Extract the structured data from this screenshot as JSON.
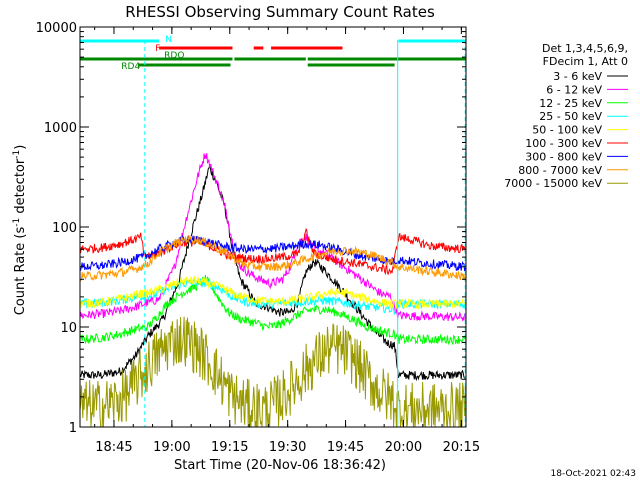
{
  "chart_data": {
    "type": "line",
    "title": "RHESSI Observing Summary Count Rates",
    "xlabel": "Start Time (20-Nov-06 18:36:42)",
    "ylabel": "Count Rate (s^-1 detector^-1)",
    "ylabel_parts": {
      "main": "Count Rate (s",
      "sup1": "-1",
      "mid": " detector",
      "sup2": "-1",
      "end": ")"
    },
    "y_scale": "log",
    "ylim": [
      1,
      10000
    ],
    "xlim_minutes": [
      -0.5,
      99.5
    ],
    "x_ticks": [
      {
        "label": "18:45",
        "minute": 8.3
      },
      {
        "label": "19:00",
        "minute": 23.3
      },
      {
        "label": "19:15",
        "minute": 38.3
      },
      {
        "label": "19:30",
        "minute": 53.3
      },
      {
        "label": "19:45",
        "minute": 68.3
      },
      {
        "label": "20:00",
        "minute": 83.3
      },
      {
        "label": "20:15",
        "minute": 98.3
      }
    ],
    "y_ticks": [
      {
        "label": "1",
        "value": 1
      },
      {
        "label": "10",
        "value": 10
      },
      {
        "label": "100",
        "value": 100
      },
      {
        "label": "1000",
        "value": 1000
      },
      {
        "label": "10000",
        "value": 10000
      }
    ],
    "legend_header": [
      "Det 1,3,4,5,6,9,",
      "FDecim 1, Att 0"
    ],
    "legend_position": "right",
    "series": [
      {
        "name": "3 - 6 keV",
        "color": "#000000",
        "points": [
          [
            -0.5,
            3.3
          ],
          [
            5,
            3.3
          ],
          [
            10,
            3.6
          ],
          [
            14,
            5.2
          ],
          [
            17,
            8
          ],
          [
            21,
            12
          ],
          [
            25,
            28
          ],
          [
            28,
            80
          ],
          [
            31,
            200
          ],
          [
            33,
            400
          ],
          [
            35,
            270
          ],
          [
            37,
            160
          ],
          [
            39,
            60
          ],
          [
            41,
            30
          ],
          [
            43,
            23
          ],
          [
            45,
            17
          ],
          [
            48,
            16
          ],
          [
            51,
            14
          ],
          [
            54,
            14
          ],
          [
            56,
            18
          ],
          [
            58,
            35
          ],
          [
            60,
            45
          ],
          [
            62,
            40
          ],
          [
            65,
            30
          ],
          [
            68,
            22
          ],
          [
            72,
            14
          ],
          [
            76,
            9
          ],
          [
            79,
            7
          ],
          [
            81,
            6.5
          ],
          [
            82,
            3.3
          ],
          [
            99.5,
            3.3
          ]
        ]
      },
      {
        "name": "6 - 12 keV",
        "color": "#ff00ff",
        "points": [
          [
            -0.5,
            13
          ],
          [
            5,
            13.5
          ],
          [
            10,
            14.5
          ],
          [
            14,
            16
          ],
          [
            17,
            17.5
          ],
          [
            20,
            19
          ],
          [
            24,
            40
          ],
          [
            27,
            120
          ],
          [
            30,
            320
          ],
          [
            32,
            550
          ],
          [
            34,
            350
          ],
          [
            36,
            220
          ],
          [
            38,
            110
          ],
          [
            40,
            45
          ],
          [
            43,
            35
          ],
          [
            46,
            30
          ],
          [
            49,
            27
          ],
          [
            52,
            30
          ],
          [
            54,
            40
          ],
          [
            56,
            70
          ],
          [
            58,
            80
          ],
          [
            60,
            60
          ],
          [
            63,
            55
          ],
          [
            66,
            45
          ],
          [
            70,
            35
          ],
          [
            74,
            27
          ],
          [
            77,
            22
          ],
          [
            80,
            20
          ],
          [
            82,
            13
          ],
          [
            99.5,
            12.5
          ]
        ]
      },
      {
        "name": "12 - 25 keV",
        "color": "#00ff00",
        "points": [
          [
            -0.5,
            7.5
          ],
          [
            5,
            7.8
          ],
          [
            10,
            8.5
          ],
          [
            14,
            9.5
          ],
          [
            17,
            10
          ],
          [
            19,
            12
          ],
          [
            22,
            17
          ],
          [
            26,
            22
          ],
          [
            30,
            26
          ],
          [
            32,
            30
          ],
          [
            34,
            24
          ],
          [
            36,
            18
          ],
          [
            38,
            14
          ],
          [
            41,
            12
          ],
          [
            45,
            11
          ],
          [
            48,
            10
          ],
          [
            51,
            10.5
          ],
          [
            54,
            12
          ],
          [
            57,
            14
          ],
          [
            60,
            15
          ],
          [
            63,
            15
          ],
          [
            66,
            14
          ],
          [
            70,
            12
          ],
          [
            74,
            10
          ],
          [
            78,
            9
          ],
          [
            81,
            8.5
          ],
          [
            82,
            7.5
          ],
          [
            99.5,
            7.5
          ]
        ]
      },
      {
        "name": "25 - 50 keV",
        "color": "#00ffff",
        "points": [
          [
            -0.5,
            17
          ],
          [
            5,
            17.5
          ],
          [
            10,
            18.5
          ],
          [
            14,
            20
          ],
          [
            17,
            20.5
          ],
          [
            19,
            21
          ],
          [
            22,
            24
          ],
          [
            26,
            27
          ],
          [
            30,
            28
          ],
          [
            33,
            27
          ],
          [
            36,
            24
          ],
          [
            39,
            20
          ],
          [
            42,
            18
          ],
          [
            46,
            17
          ],
          [
            50,
            17
          ],
          [
            54,
            17.5
          ],
          [
            58,
            18
          ],
          [
            62,
            18.5
          ],
          [
            66,
            18
          ],
          [
            70,
            17
          ],
          [
            74,
            16
          ],
          [
            78,
            15.5
          ],
          [
            81,
            15
          ],
          [
            82,
            17
          ],
          [
            99.5,
            17
          ]
        ]
      },
      {
        "name": "50 - 100 keV",
        "color": "#ffff00",
        "points": [
          [
            -0.5,
            17
          ],
          [
            5,
            17.5
          ],
          [
            10,
            19
          ],
          [
            14,
            21
          ],
          [
            17,
            22
          ],
          [
            19,
            23
          ],
          [
            22,
            25
          ],
          [
            26,
            29
          ],
          [
            30,
            29
          ],
          [
            33,
            27
          ],
          [
            36,
            25
          ],
          [
            40,
            21
          ],
          [
            44,
            19
          ],
          [
            48,
            18
          ],
          [
            52,
            18
          ],
          [
            56,
            19
          ],
          [
            60,
            20
          ],
          [
            64,
            22
          ],
          [
            68,
            22
          ],
          [
            72,
            20
          ],
          [
            76,
            18
          ],
          [
            80,
            17
          ],
          [
            82,
            17
          ],
          [
            99.5,
            17
          ]
        ]
      },
      {
        "name": "100 - 300 keV",
        "color": "#ff0000",
        "points": [
          [
            -0.5,
            60
          ],
          [
            5,
            62
          ],
          [
            10,
            68
          ],
          [
            14,
            76
          ],
          [
            15.5,
            80
          ],
          [
            16,
            50
          ],
          [
            20,
            55
          ],
          [
            24,
            66
          ],
          [
            27,
            71
          ],
          [
            30,
            70
          ],
          [
            33,
            65
          ],
          [
            36,
            57
          ],
          [
            38,
            52
          ],
          [
            40,
            50
          ],
          [
            44,
            48
          ],
          [
            48,
            48
          ],
          [
            52,
            50
          ],
          [
            56,
            54
          ],
          [
            58,
            90
          ],
          [
            60,
            55
          ],
          [
            63,
            50
          ],
          [
            66,
            47
          ],
          [
            70,
            44
          ],
          [
            74,
            41
          ],
          [
            78,
            38
          ],
          [
            80.5,
            36
          ],
          [
            82,
            80
          ],
          [
            85,
            75
          ],
          [
            90,
            65
          ],
          [
            95,
            62
          ],
          [
            99.5,
            60
          ]
        ]
      },
      {
        "name": "300 - 800 keV",
        "color": "#0000ff",
        "points": [
          [
            -0.5,
            40
          ],
          [
            5,
            41
          ],
          [
            10,
            44
          ],
          [
            14,
            48
          ],
          [
            17,
            52
          ],
          [
            20,
            60
          ],
          [
            24,
            70
          ],
          [
            27,
            75
          ],
          [
            30,
            74
          ],
          [
            33,
            70
          ],
          [
            36,
            65
          ],
          [
            39,
            62
          ],
          [
            42,
            60
          ],
          [
            46,
            60
          ],
          [
            50,
            61
          ],
          [
            54,
            64
          ],
          [
            58,
            68
          ],
          [
            62,
            66
          ],
          [
            66,
            60
          ],
          [
            70,
            54
          ],
          [
            74,
            50
          ],
          [
            78,
            47
          ],
          [
            80,
            45
          ],
          [
            82,
            47
          ],
          [
            90,
            43
          ],
          [
            99.5,
            40
          ]
        ]
      },
      {
        "name": "800 - 7000 keV",
        "color": "#ff9900",
        "points": [
          [
            -0.5,
            32
          ],
          [
            5,
            33
          ],
          [
            10,
            35
          ],
          [
            14,
            38
          ],
          [
            17,
            43
          ],
          [
            20,
            55
          ],
          [
            24,
            68
          ],
          [
            27,
            76
          ],
          [
            30,
            75
          ],
          [
            33,
            68
          ],
          [
            36,
            58
          ],
          [
            39,
            50
          ],
          [
            42,
            42
          ],
          [
            46,
            40
          ],
          [
            50,
            40
          ],
          [
            54,
            42
          ],
          [
            58,
            48
          ],
          [
            62,
            54
          ],
          [
            66,
            58
          ],
          [
            70,
            58
          ],
          [
            74,
            54
          ],
          [
            78,
            48
          ],
          [
            80,
            45
          ],
          [
            82,
            40
          ],
          [
            90,
            36
          ],
          [
            99.5,
            32
          ]
        ]
      },
      {
        "name": "7000 - 15000 keV",
        "color": "#999900",
        "points": [
          [
            -0.5,
            1.6
          ],
          [
            5,
            1.6
          ],
          [
            9,
            1.8
          ],
          [
            12,
            2.2
          ],
          [
            14,
            2.8
          ],
          [
            16,
            3.5
          ],
          [
            18,
            4.5
          ],
          [
            21,
            6
          ],
          [
            24,
            7.5
          ],
          [
            27,
            7.5
          ],
          [
            30,
            6
          ],
          [
            33,
            4.5
          ],
          [
            36,
            3
          ],
          [
            39,
            2
          ],
          [
            43,
            1.6
          ],
          [
            48,
            1.5
          ],
          [
            52,
            2
          ],
          [
            56,
            3
          ],
          [
            60,
            4.5
          ],
          [
            64,
            6
          ],
          [
            67,
            6
          ],
          [
            70,
            5
          ],
          [
            73,
            3.5
          ],
          [
            76,
            2.5
          ],
          [
            79,
            2
          ],
          [
            81,
            1.8
          ],
          [
            82,
            1.5
          ],
          [
            99.5,
            1.5
          ]
        ]
      }
    ],
    "flags": [
      {
        "label": "N",
        "color": "#00ffff",
        "row": 0,
        "label_at_minute": 21.6,
        "segments": [
          [
            -0.5,
            20
          ],
          [
            82,
            99.5
          ]
        ]
      },
      {
        "label": "F",
        "color": "#ff0000",
        "row": 1,
        "label_at_minute": 19,
        "segments": [
          [
            20,
            39
          ],
          [
            44.5,
            47
          ],
          [
            49,
            67.5
          ]
        ]
      },
      {
        "label": "RDO",
        "color": "#008800",
        "row": 2,
        "label_at_minute": 21.3,
        "segments": [
          [
            -0.5,
            39
          ],
          [
            39.5,
            58
          ],
          [
            58.5,
            99.5
          ]
        ]
      },
      {
        "label": "RD4",
        "color": "#008800",
        "row": 3,
        "label_at_minute": 10.2,
        "segments": [
          [
            14.5,
            38.5
          ],
          [
            58.5,
            81
          ]
        ]
      }
    ],
    "night_boundaries_minutes": [
      -0.5,
      16.3,
      81.8,
      99.3
    ]
  },
  "footer": {
    "timestamp": "18-Oct-2021 02:43"
  }
}
